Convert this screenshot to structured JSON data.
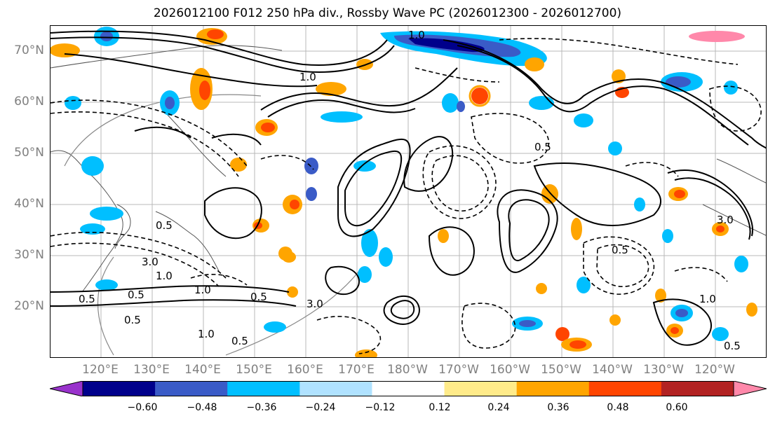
{
  "title": "2026012100 F012 250 hPa div., Rossby Wave PC (2026012300 - 2026012700)",
  "lat_labels": [
    "70°N",
    "60°N",
    "50°N",
    "40°N",
    "30°N",
    "20°N"
  ],
  "lon_labels": [
    "120°E",
    "130°E",
    "140°E",
    "150°E",
    "160°E",
    "170°E",
    "180°W",
    "170°W",
    "160°W",
    "150°W",
    "140°W",
    "130°W",
    "120°W"
  ],
  "colorbar": {
    "colors": [
      "#9932CC",
      "#00008B",
      "#3A5BC7",
      "#00BFFF",
      "#B0E2FF",
      "#FFFFFF",
      "#FFEB8A",
      "#FFA500",
      "#FF4500",
      "#B22222",
      "#FF88AA"
    ],
    "ticks": [
      "−0.60",
      "−0.48",
      "−0.36",
      "−0.24",
      "−0.12",
      "0.12",
      "0.24",
      "0.36",
      "0.48",
      "0.60"
    ]
  },
  "contour_labels": [
    "1.0",
    "0.5",
    "3.0",
    "0.5",
    "1.0",
    "0.5",
    "1.0",
    "0.5",
    "3.0",
    "0.5",
    "1.0",
    "0.5",
    "0.5",
    "1.0",
    "0.5",
    "1.0",
    "3.0",
    "0.5"
  ]
}
